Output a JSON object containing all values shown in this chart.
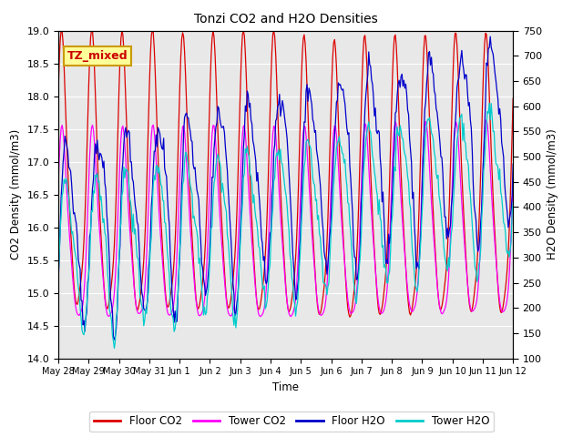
{
  "title": "Tonzi CO2 and H2O Densities",
  "xlabel": "Time",
  "ylabel_left": "CO2 Density (mmol/m3)",
  "ylabel_right": "H2O Density (mmol/m3)",
  "ylim_left": [
    14.0,
    19.0
  ],
  "ylim_right": [
    100,
    750
  ],
  "colors": {
    "floor_co2": "#dd0000",
    "tower_co2": "#ff00ff",
    "floor_h2o": "#0000cc",
    "tower_h2o": "#00cccc"
  },
  "annotation_text": "TZ_mixed",
  "annotation_color": "#cc0000",
  "annotation_bg": "#ffff99",
  "annotation_border": "#cc9900",
  "axes_bg": "#e8e8e8",
  "fig_bg": "#ffffff",
  "x_tick_labels": [
    "May 28",
    "May 29",
    "May 30",
    "May 31",
    "Jun 1",
    "Jun 2",
    "Jun 3",
    "Jun 4",
    "Jun 5",
    "Jun 6",
    "Jun 7",
    "Jun 8",
    "Jun 9",
    "Jun 10",
    "Jun 11",
    "Jun 12"
  ],
  "n_points": 480,
  "legend_labels": [
    "Floor CO2",
    "Tower CO2",
    "Floor H2O",
    "Tower H2O"
  ]
}
